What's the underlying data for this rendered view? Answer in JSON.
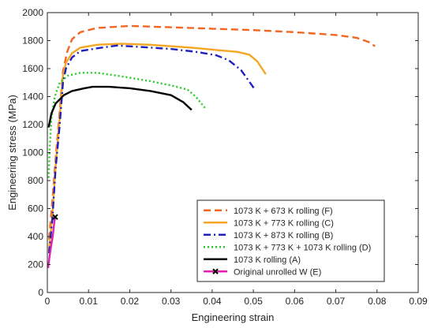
{
  "chart_data": {
    "type": "line",
    "xlabel": "Engineering strain",
    "ylabel": "Engineering stress (MPa)",
    "xlim": [
      0,
      0.09
    ],
    "ylim": [
      0,
      2000
    ],
    "xticks": [
      "0",
      "0.01",
      "0.02",
      "0.03",
      "0.04",
      "0.05",
      "0.06",
      "0.07",
      "0.08",
      "0.09"
    ],
    "yticks": [
      "0",
      "200",
      "400",
      "600",
      "800",
      "1000",
      "1200",
      "1400",
      "1600",
      "1800",
      "2000"
    ],
    "grid": false,
    "legend_position": "bottom-right",
    "series": [
      {
        "name": "1073 K + 673 K rolling (F)",
        "color": "#f26522",
        "dash": "dashed",
        "points": [
          [
            0.0004,
            380
          ],
          [
            0.0012,
            650
          ],
          [
            0.002,
            950
          ],
          [
            0.003,
            1300
          ],
          [
            0.0038,
            1580
          ],
          [
            0.0048,
            1720
          ],
          [
            0.006,
            1810
          ],
          [
            0.008,
            1860
          ],
          [
            0.012,
            1890
          ],
          [
            0.02,
            1905
          ],
          [
            0.03,
            1895
          ],
          [
            0.04,
            1885
          ],
          [
            0.05,
            1875
          ],
          [
            0.06,
            1860
          ],
          [
            0.07,
            1840
          ],
          [
            0.075,
            1820
          ],
          [
            0.078,
            1790
          ],
          [
            0.0795,
            1760
          ]
        ]
      },
      {
        "name": "1073 K + 773 K rolling (C)",
        "color": "#f5a623",
        "dash": "solid",
        "points": [
          [
            0.0004,
            300
          ],
          [
            0.0012,
            550
          ],
          [
            0.002,
            900
          ],
          [
            0.003,
            1250
          ],
          [
            0.0038,
            1550
          ],
          [
            0.0045,
            1640
          ],
          [
            0.006,
            1710
          ],
          [
            0.008,
            1750
          ],
          [
            0.012,
            1770
          ],
          [
            0.018,
            1778
          ],
          [
            0.025,
            1770
          ],
          [
            0.035,
            1750
          ],
          [
            0.042,
            1730
          ],
          [
            0.046,
            1720
          ],
          [
            0.049,
            1700
          ],
          [
            0.051,
            1650
          ],
          [
            0.053,
            1560
          ]
        ]
      },
      {
        "name": "1073 K + 873 K rolling (B)",
        "color": "#1f1fbf",
        "dash": "dashdot",
        "points": [
          [
            0.0004,
            280
          ],
          [
            0.0012,
            520
          ],
          [
            0.002,
            880
          ],
          [
            0.003,
            1200
          ],
          [
            0.0038,
            1500
          ],
          [
            0.0045,
            1600
          ],
          [
            0.006,
            1680
          ],
          [
            0.008,
            1725
          ],
          [
            0.012,
            1745
          ],
          [
            0.017,
            1765
          ],
          [
            0.025,
            1750
          ],
          [
            0.03,
            1740
          ],
          [
            0.036,
            1720
          ],
          [
            0.041,
            1695
          ],
          [
            0.044,
            1660
          ],
          [
            0.047,
            1590
          ],
          [
            0.0505,
            1445
          ]
        ]
      },
      {
        "name": "1073 K + 773 K + 1073 K rolling (D)",
        "color": "#22cc22",
        "dash": "dotted",
        "points": [
          [
            0.0003,
            820
          ],
          [
            0.0006,
            1050
          ],
          [
            0.001,
            1250
          ],
          [
            0.0018,
            1400
          ],
          [
            0.003,
            1500
          ],
          [
            0.005,
            1550
          ],
          [
            0.008,
            1570
          ],
          [
            0.012,
            1570
          ],
          [
            0.018,
            1545
          ],
          [
            0.025,
            1510
          ],
          [
            0.03,
            1480
          ],
          [
            0.034,
            1450
          ],
          [
            0.036,
            1400
          ],
          [
            0.0385,
            1310
          ]
        ]
      },
      {
        "name": "1073 K rolling (A)",
        "color": "#000000",
        "dash": "solid",
        "points": [
          [
            0.0003,
            1180
          ],
          [
            0.001,
            1280
          ],
          [
            0.002,
            1350
          ],
          [
            0.004,
            1410
          ],
          [
            0.006,
            1440
          ],
          [
            0.009,
            1460
          ],
          [
            0.011,
            1470
          ],
          [
            0.015,
            1470
          ],
          [
            0.02,
            1460
          ],
          [
            0.025,
            1440
          ],
          [
            0.03,
            1410
          ],
          [
            0.033,
            1360
          ],
          [
            0.035,
            1305
          ]
        ]
      },
      {
        "name": "Original unrolled W (E)",
        "color": "#e020b0",
        "dash": "solid",
        "points": [
          [
            0.0002,
            175
          ],
          [
            0.0005,
            250
          ],
          [
            0.0009,
            330
          ],
          [
            0.0013,
            400
          ],
          [
            0.0015,
            450
          ],
          [
            0.0017,
            505
          ],
          [
            0.0019,
            540
          ]
        ]
      }
    ]
  }
}
